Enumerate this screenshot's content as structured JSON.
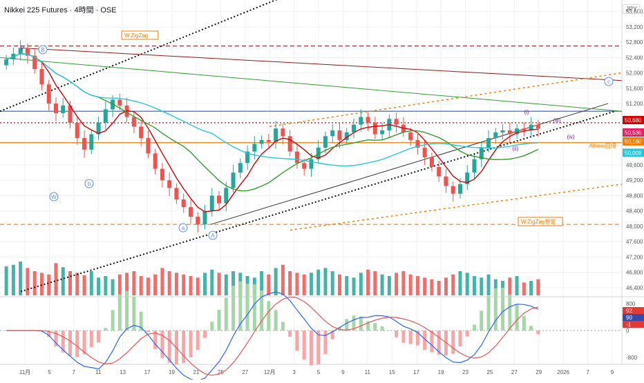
{
  "header": {
    "title": "Nikkei 225 Futures · 4時間 · OSE",
    "currency": "JPY"
  },
  "colors": {
    "up": "#26a69a",
    "down": "#ef5350",
    "bg": "#ffffff",
    "grid": "#eef0f3",
    "ma_short": "#d50000",
    "ma_mid": "#2e9e2e",
    "ma_long": "#26c6da",
    "gray_line": "#9e9e9e",
    "zigzag": "#f57c00",
    "purple": "#7b1fa2",
    "blue_line": "#1e5bd6"
  },
  "chart_data": [
    {
      "type": "candlestick",
      "title": "Nikkei 225 Futures · 4時間 · OSE",
      "y_axis": {
        "ticks": [
          53600,
          53200,
          52800,
          52400,
          52000,
          51600,
          51200,
          50800,
          49600,
          49200,
          48800,
          48400,
          48000,
          47600,
          47200,
          46800,
          46400
        ],
        "ylim": [
          46200,
          53900
        ]
      },
      "x_axis": {
        "ticks": [
          "11月",
          "5",
          "7",
          "11",
          "13",
          "17",
          "19",
          "21",
          "25",
          "27",
          "12月",
          "3",
          "5",
          "9",
          "11",
          "15",
          "17",
          "19",
          "23",
          "25",
          "27",
          "29",
          "2026",
          "7",
          "9"
        ]
      },
      "price_labels": [
        {
          "text": "50,680",
          "value": 50680,
          "color": "#d50000"
        },
        {
          "text": "50,536",
          "value": 50536,
          "color": "#e91e63"
        },
        {
          "text": "50,160",
          "value": 50160,
          "color": "#f57c00"
        },
        {
          "text": "50,008",
          "value": 50008,
          "color": "#26c6da"
        }
      ],
      "horizontal_levels": [
        {
          "value": 52700,
          "style": "dashed",
          "color": "#8b1a1a"
        },
        {
          "value": 51000,
          "style": "solid",
          "color": "#1e5bd6"
        },
        {
          "value": 50700,
          "style": "dotted",
          "color": "#d50000"
        },
        {
          "value": 50180,
          "style": "solid",
          "color": "#f57c00"
        },
        {
          "value": 48050,
          "style": "dashed",
          "color": "#f57c00"
        }
      ],
      "annotations": [
        {
          "text": "W.ZigZag",
          "kind": "label-box"
        },
        {
          "text": "W.ZigZag想定",
          "kind": "label-box"
        },
        {
          "text": "Allnow回帰",
          "kind": "label"
        },
        {
          "text": "(iii)",
          "kind": "wave"
        },
        {
          "text": "(iv)",
          "kind": "wave"
        },
        {
          "text": "(i)",
          "kind": "wave"
        },
        {
          "text": "(ii)",
          "kind": "wave"
        },
        {
          "text": "V",
          "kind": "wave"
        },
        {
          "text": "B",
          "kind": "circle"
        },
        {
          "text": "a",
          "kind": "circle"
        },
        {
          "text": "b",
          "kind": "circle"
        },
        {
          "text": "c",
          "kind": "circle"
        },
        {
          "text": "W",
          "kind": "circle"
        },
        {
          "text": "A",
          "kind": "circle"
        }
      ],
      "close": [
        52350,
        52500,
        52650,
        52450,
        52100,
        51700,
        51200,
        50950,
        51150,
        50700,
        50300,
        50000,
        50400,
        50700,
        51050,
        51300,
        51150,
        50850,
        50600,
        50300,
        49900,
        49500,
        49200,
        49000,
        48700,
        48500,
        48250,
        48050,
        48400,
        48800,
        48600,
        49000,
        49400,
        49650,
        49950,
        50150,
        50250,
        50200,
        50550,
        50350,
        49950,
        49650,
        49500,
        49750,
        50050,
        50350,
        50500,
        50250,
        50450,
        50650,
        50850,
        50700,
        50400,
        50500,
        50800,
        50650,
        50450,
        50250,
        50050,
        49800,
        49550,
        49300,
        49050,
        48850,
        49100,
        49400,
        49750,
        50050,
        50300,
        50450,
        50500,
        50400,
        50550,
        50500,
        50650,
        50550
      ]
    },
    {
      "type": "bar",
      "title": "Volume",
      "values": [
        36,
        38,
        42,
        34,
        30,
        28,
        26,
        40,
        35,
        30,
        28,
        25,
        30,
        22,
        24,
        20,
        26,
        28,
        30,
        24,
        22,
        26,
        34,
        30,
        28,
        26,
        24,
        22,
        28,
        32,
        28,
        26,
        30,
        28,
        24,
        22,
        30,
        26,
        34,
        38,
        30,
        28,
        26,
        28,
        32,
        34,
        30,
        26,
        24,
        22,
        28,
        32,
        30,
        26,
        24,
        28,
        30,
        26,
        24,
        22,
        20,
        18,
        22,
        26,
        30,
        28,
        24,
        22,
        26,
        20,
        18,
        22,
        24,
        16,
        18,
        20
      ]
    },
    {
      "type": "line",
      "title": "MACD",
      "y_axis": {
        "ticks": [
          800,
          0,
          -800
        ]
      },
      "values_labels": [
        {
          "text": "92",
          "value": 92
        },
        {
          "text": "90",
          "value": 90
        },
        {
          "text": "-1",
          "value": -1
        }
      ]
    }
  ]
}
